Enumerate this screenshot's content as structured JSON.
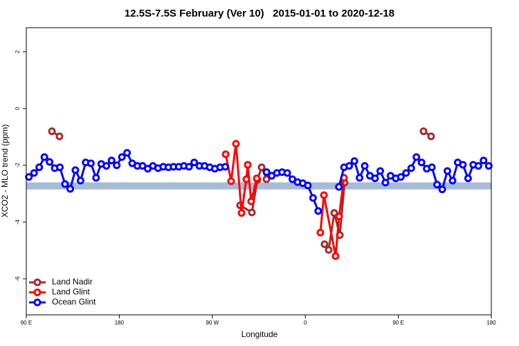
{
  "chart_data": {
    "type": "line",
    "title": "12.5S-7.5S February (Ver 10)   2015-01-01 to 2020-12-18",
    "x_label": "Longitude",
    "y_label": "XCO2 - MLO trend (ppm)",
    "xlim": [
      90,
      540
    ],
    "xticks": [
      {
        "value": 90,
        "label": "90 E"
      },
      {
        "value": 180,
        "label": "180"
      },
      {
        "value": 270,
        "label": "90 W"
      },
      {
        "value": 360,
        "label": "0"
      },
      {
        "value": 450,
        "label": "90 E"
      },
      {
        "value": 540,
        "label": "180"
      }
    ],
    "ylim": [
      -7.27,
      2.85
    ],
    "yticks": [
      2,
      0,
      -2,
      -4,
      -6
    ],
    "band": {
      "ymin": -2.85,
      "ymax": -2.6,
      "color": "#a8bcd8"
    },
    "legend": "bottom-left",
    "series": [
      {
        "name": "Land Nadir",
        "color": "#a52a2a",
        "x": [
          114.8,
          122.1,
          200,
          296.9,
          308.3,
          313.7,
          317.7,
          322.4,
          350,
          378.6,
          382.6,
          388.0,
          393.4,
          398.0,
          440,
          474.4,
          481.7
        ],
        "values": [
          -0.8,
          -0.98,
          null,
          -3.41,
          -3.66,
          -2.51,
          -2.07,
          -2.49,
          null,
          -4.78,
          -4.98,
          -3.68,
          -4.46,
          -2.61,
          null,
          -0.8,
          -0.98
        ]
      },
      {
        "name": "Land Glint",
        "color": "#ff0000",
        "x": [
          282.9,
          288.2,
          292.9,
          298.3,
          302.9,
          304.3,
          307.6,
          313.0,
          340,
          374.6,
          378.0,
          389.3,
          392.7,
          397.4
        ],
        "values": [
          -1.61,
          -2.56,
          -1.24,
          -3.68,
          -2.49,
          -1.98,
          -3.27,
          -2.46,
          null,
          -4.37,
          -3.05,
          -5.2,
          -3.8,
          -2.44
        ]
      },
      {
        "name": "Ocean Glint",
        "color": "#0000ff",
        "x": [
          92.5,
          97.5,
          102.5,
          107.5,
          112.5,
          117.5,
          122.5,
          127.5,
          132.5,
          137.5,
          142.5,
          147.5,
          152.5,
          157.5,
          162.5,
          167.5,
          172.5,
          177.5,
          182.5,
          187.5,
          192.5,
          197.5,
          202.5,
          207.5,
          212.5,
          217.5,
          222.5,
          227.5,
          232.5,
          237.5,
          242.5,
          247.5,
          252.5,
          257.5,
          262.5,
          267.5,
          272.5,
          277.5,
          282.5,
          302.5,
          322.5,
          327.5,
          332.5,
          337.5,
          342.5,
          347.5,
          352.5,
          357.5,
          362.5,
          367.5,
          372.5,
          382.5,
          392.5,
          397.5,
          402.5,
          407.5,
          412.5,
          417.5,
          422.5,
          427.5,
          432.5,
          437.5,
          442.5,
          447.5,
          452.5,
          457.5,
          462.5,
          467.5,
          472.5,
          477.5,
          482.5,
          487.5,
          492.5,
          497.5,
          502.5,
          507.5,
          512.5,
          517.5,
          522.5,
          527.5,
          532.5,
          537.5
        ],
        "values": [
          -2.41,
          -2.27,
          -2.07,
          -1.71,
          -1.88,
          -2.1,
          -2.07,
          -2.66,
          -2.83,
          -2.17,
          -2.54,
          -1.9,
          -1.93,
          -2.44,
          -1.95,
          -2.02,
          -1.83,
          -2.0,
          -1.71,
          -1.56,
          -1.93,
          -2.02,
          -2.02,
          -2.12,
          -2.02,
          -2.1,
          -2.05,
          -2.07,
          -2.05,
          -2.05,
          -2.02,
          -2.05,
          -1.9,
          -2.02,
          -2.02,
          -2.07,
          -2.12,
          -2.07,
          -2.05,
          null,
          -2.24,
          -2.37,
          -2.27,
          -2.24,
          -2.27,
          -2.49,
          -2.59,
          -2.63,
          -2.71,
          -3.15,
          -3.61,
          null,
          -2.76,
          -2.07,
          -2.02,
          -1.85,
          -2.44,
          -2.02,
          -2.37,
          -2.46,
          -2.2,
          -2.61,
          -2.37,
          -2.46,
          -2.41,
          -2.27,
          -2.1,
          -1.71,
          -1.9,
          -2.12,
          -2.07,
          -2.68,
          -2.85,
          -2.2,
          -2.54,
          -1.9,
          -1.98,
          -2.46,
          -1.98,
          -2.02,
          -1.83,
          -2.02
        ]
      }
    ]
  }
}
